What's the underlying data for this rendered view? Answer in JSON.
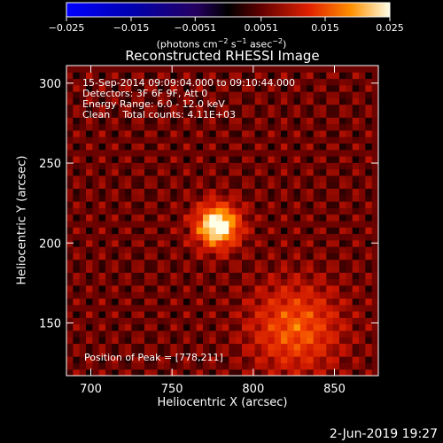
{
  "chart_data": {
    "type": "heatmap",
    "title": "Reconstructed RHESSI Image",
    "xlabel": "Heliocentric X (arcsec)",
    "ylabel": "Heliocentric Y (arcsec)",
    "xlim": [
      685,
      877
    ],
    "ylim": [
      117,
      311
    ],
    "xticks": [
      700,
      750,
      800,
      850
    ],
    "yticks": [
      150,
      200,
      250,
      300
    ],
    "colorbar": {
      "range": [
        -0.025,
        0.025
      ],
      "ticks": [
        "−0.025",
        "−0.015",
        "−0.0051",
        "0.0051",
        "0.015",
        "0.025"
      ],
      "tick_values": [
        -0.025,
        -0.015,
        -0.0051,
        0.0051,
        0.015,
        0.025
      ],
      "label_text": "(photons cm",
      "label_sup1": "−2",
      "label_mid": " s",
      "label_sup2": "−1",
      "label_mid2": " asec",
      "label_sup3": "−2",
      "label_end": ")"
    },
    "annotations": [
      "15-Sep-2014 09:09:04.000 to 09:10:44.000",
      "Detectors: 3F 6F 9F, Att 0",
      "Energy Range: 6.0 - 12.0 keV",
      "Clean    Total counts: 4.11E+03"
    ],
    "peak_label": "Position of Peak = [778,211]",
    "sources": [
      {
        "x": 778,
        "y": 211,
        "peak": 0.025,
        "sigma": 9
      },
      {
        "x": 826,
        "y": 147,
        "peak": 0.012,
        "sigma": 18
      }
    ]
  },
  "footer": {
    "date": "2-Jun-2019 19:27"
  }
}
